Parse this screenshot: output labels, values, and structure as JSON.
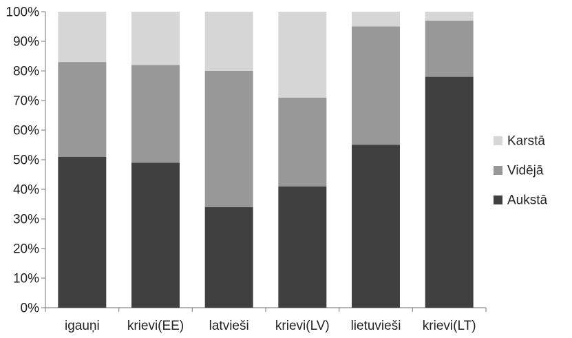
{
  "chart_data": {
    "type": "bar",
    "stacked": true,
    "categories": [
      "igauņi",
      "krievi(EE)",
      "latvieši",
      "krievi(LV)",
      "lietuvieši",
      "krievi(LT)"
    ],
    "series": [
      {
        "name": "Aukstā",
        "color": "#404040",
        "values": [
          51,
          49,
          34,
          41,
          55,
          78
        ]
      },
      {
        "name": "Vidējā",
        "color": "#989898",
        "values": [
          32,
          33,
          46,
          30,
          40,
          19
        ]
      },
      {
        "name": "Karstā",
        "color": "#d6d6d6",
        "values": [
          17,
          18,
          20,
          29,
          5,
          3
        ]
      }
    ],
    "yticks": [
      "0%",
      "10%",
      "20%",
      "30%",
      "40%",
      "50%",
      "60%",
      "70%",
      "80%",
      "90%",
      "100%"
    ],
    "ylim": [
      0,
      100
    ],
    "legend_position": "right",
    "grid": false
  }
}
